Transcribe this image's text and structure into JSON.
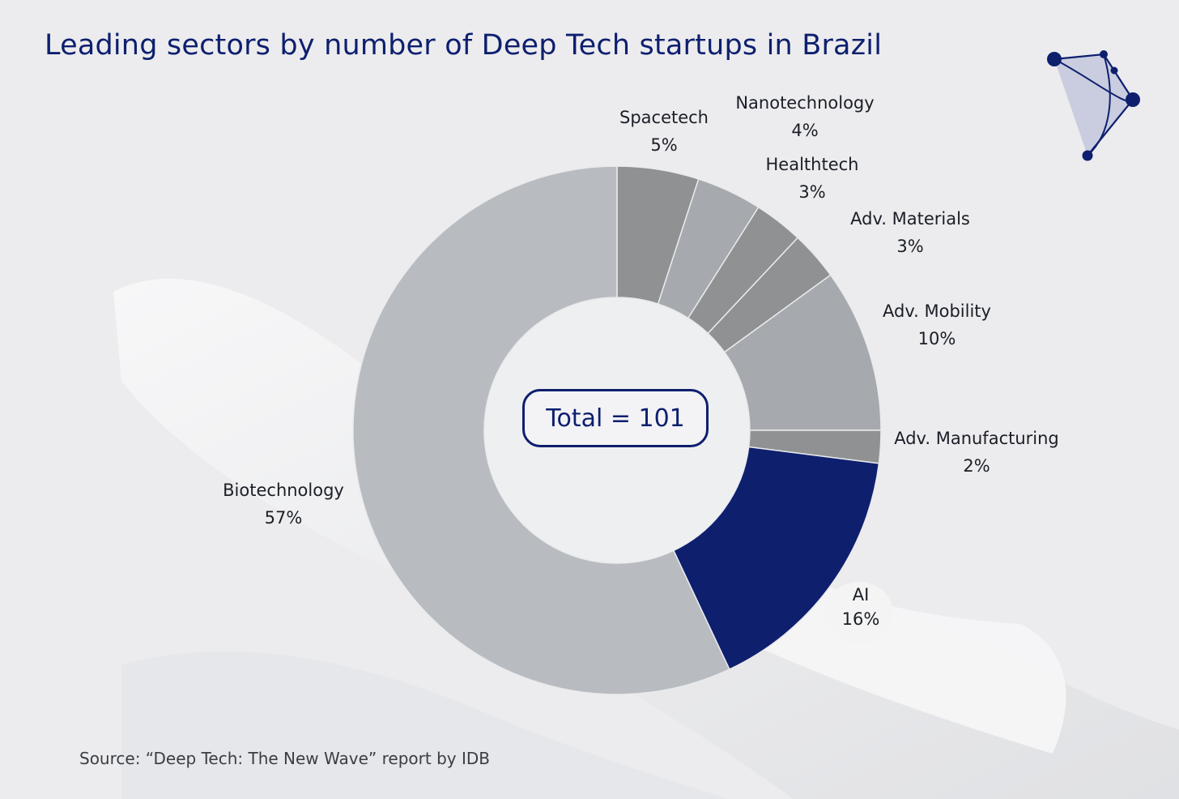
{
  "title": "Leading sectors by number of Deep Tech startups in Brazil",
  "center_label": "Total = 101",
  "source": "Source: “Deep Tech: The New Wave” report by IDB",
  "colors": {
    "title": "#0e1f6e",
    "highlight": "#0e1f6e",
    "light_grey": "#b8bcc1",
    "mid_grey": "#a6a9ad",
    "dark_grey": "#8f9193"
  },
  "chart_data": {
    "type": "pie",
    "title": "Leading sectors by number of Deep Tech startups in Brazil",
    "total": 101,
    "unit": "%",
    "slices": [
      {
        "label": "Spacetech",
        "value": 5,
        "display": "5%"
      },
      {
        "label": "Nanotechnology",
        "value": 4,
        "display": "4%"
      },
      {
        "label": "Healthtech",
        "value": 3,
        "display": "3%"
      },
      {
        "label": "Adv. Materials",
        "value": 3,
        "display": "3%"
      },
      {
        "label": "Adv. Mobility",
        "value": 10,
        "display": "10%"
      },
      {
        "label": "Adv. Manufacturing",
        "value": 2,
        "display": "2%"
      },
      {
        "label": "AI",
        "value": 16,
        "display": "16%"
      },
      {
        "label": "Biotechnology",
        "value": 57,
        "display": "57%"
      }
    ]
  }
}
